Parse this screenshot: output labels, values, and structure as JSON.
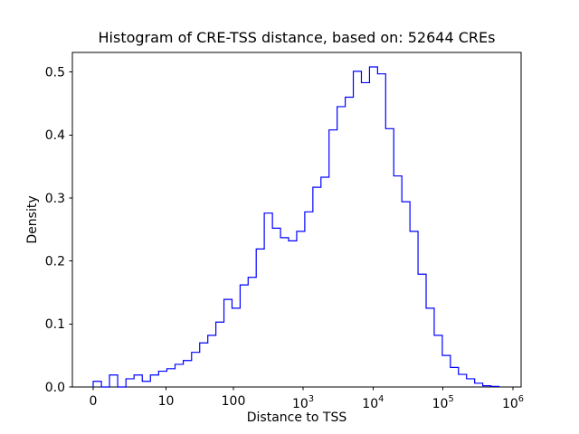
{
  "chart_data": {
    "type": "histogram-step",
    "title": "Histogram of CRE-TSS distance, based on: 52644 CREs",
    "xlabel": "Distance to TSS",
    "ylabel": "Density",
    "sample_count": 52644,
    "line_color": "#0000ff",
    "background_color": "#ffffff",
    "x_scale": "log10(x+1) (symlog-like, 0 shown at origin)",
    "grid": false,
    "legend": "none",
    "ylim": [
      0,
      0.531
    ],
    "y_ticks": [
      {
        "v": 0.0,
        "t": "0.0"
      },
      {
        "v": 0.1,
        "t": "0.1"
      },
      {
        "v": 0.2,
        "t": "0.2"
      },
      {
        "v": 0.3,
        "t": "0.3"
      },
      {
        "v": 0.4,
        "t": "0.4"
      },
      {
        "v": 0.5,
        "t": "0.5"
      }
    ],
    "x_ticks": [
      {
        "v": 0,
        "t": "0"
      },
      {
        "v": 10,
        "t": "10"
      },
      {
        "v": 100,
        "t": "100"
      },
      {
        "v": 1000,
        "t": "10",
        "e": "3"
      },
      {
        "v": 10000,
        "t": "10",
        "e": "4"
      },
      {
        "v": 100000,
        "t": "10",
        "e": "5"
      },
      {
        "v": 1000000,
        "t": "10",
        "e": "6"
      }
    ],
    "bin_edges": [
      0,
      0.31,
      0.71,
      1.24,
      1.94,
      2.84,
      4.03,
      5.58,
      7.62,
      10.3,
      13.8,
      18.4,
      24.5,
      32.3,
      42.5,
      55.7,
      73.0,
      95.5,
      125,
      163,
      213,
      278,
      364,
      475,
      620,
      810,
      1057,
      1380,
      1801,
      2351,
      3069,
      4005,
      5227,
      6822,
      8904,
      11620,
      15165,
      19791,
      25828,
      33706,
      43988,
      57406,
      74917,
      97771,
      127600,
      166500,
      217300,
      283600,
      370100,
      483000,
      630400
    ],
    "densities": [
      0.009,
      0.0,
      0.019,
      0.0,
      0.013,
      0.019,
      0.009,
      0.019,
      0.025,
      0.029,
      0.036,
      0.042,
      0.055,
      0.07,
      0.082,
      0.103,
      0.139,
      0.125,
      0.162,
      0.174,
      0.219,
      0.276,
      0.252,
      0.237,
      0.232,
      0.247,
      0.278,
      0.317,
      0.333,
      0.408,
      0.445,
      0.46,
      0.501,
      0.483,
      0.508,
      0.497,
      0.41,
      0.335,
      0.294,
      0.247,
      0.179,
      0.125,
      0.082,
      0.05,
      0.031,
      0.02,
      0.013,
      0.006,
      0.002,
      0.001
    ]
  }
}
